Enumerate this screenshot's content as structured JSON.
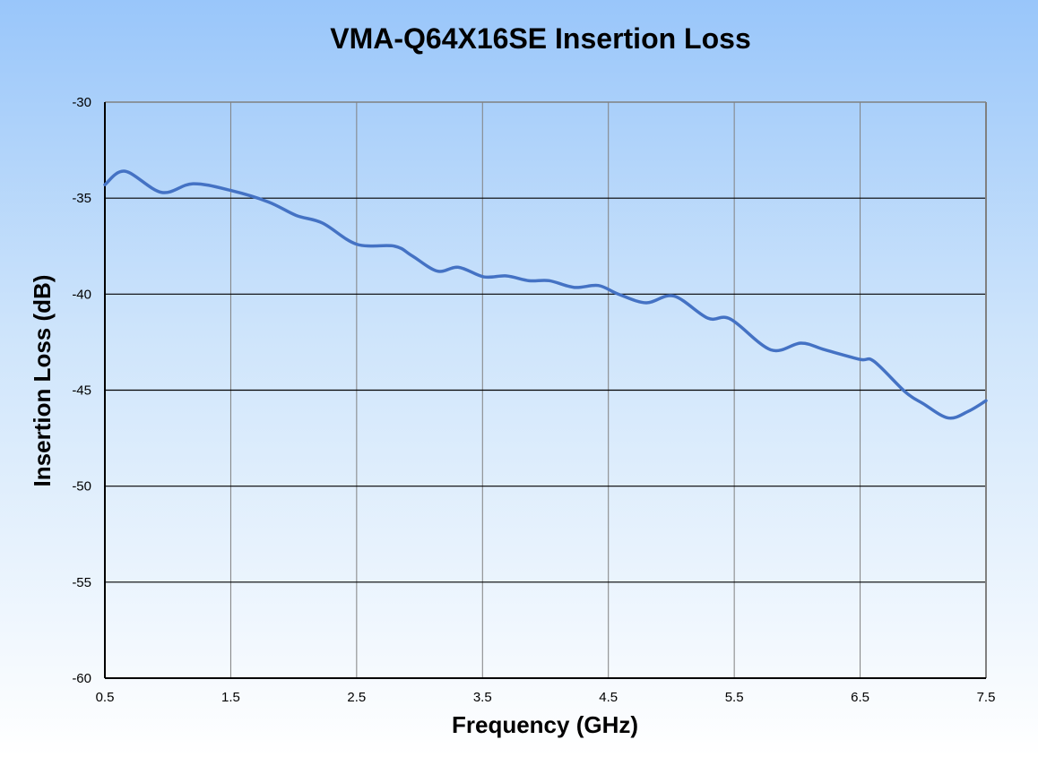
{
  "chart_data": {
    "type": "line",
    "title": "VMA-Q64X16SE Insertion Loss",
    "xlabel": "Frequency (GHz)",
    "ylabel": "Insertion Loss (dB)",
    "xlim": [
      0.5,
      7.5
    ],
    "ylim": [
      -60,
      -30
    ],
    "xticks": [
      "0.5",
      "1.5",
      "2.5",
      "3.5",
      "4.5",
      "5.5",
      "6.5",
      "7.5"
    ],
    "yticks": [
      "-30",
      "-35",
      "-40",
      "-45",
      "-50",
      "-55",
      "-60"
    ],
    "grid": true,
    "line_color": "#4472c4",
    "series": [
      {
        "x": [
          0.5,
          0.66,
          0.95,
          1.2,
          1.5,
          1.8,
          2.02,
          2.23,
          2.5,
          2.8,
          2.94,
          3.14,
          3.31,
          3.51,
          3.69,
          3.87,
          4.03,
          4.23,
          4.42,
          4.58,
          4.8,
          5.02,
          5.29,
          5.47,
          5.79,
          6.03,
          6.22,
          6.5,
          6.61,
          6.86,
          7.0,
          7.2,
          7.36,
          7.5
        ],
        "y": [
          -34.3,
          -33.6,
          -34.7,
          -34.25,
          -34.6,
          -35.2,
          -35.9,
          -36.3,
          -37.4,
          -37.5,
          -38.0,
          -38.8,
          -38.6,
          -39.1,
          -39.05,
          -39.3,
          -39.3,
          -39.65,
          -39.55,
          -40.0,
          -40.45,
          -40.1,
          -41.25,
          -41.3,
          -42.9,
          -42.55,
          -42.9,
          -43.4,
          -43.5,
          -45.1,
          -45.7,
          -46.45,
          -46.1,
          -45.55
        ]
      }
    ]
  }
}
